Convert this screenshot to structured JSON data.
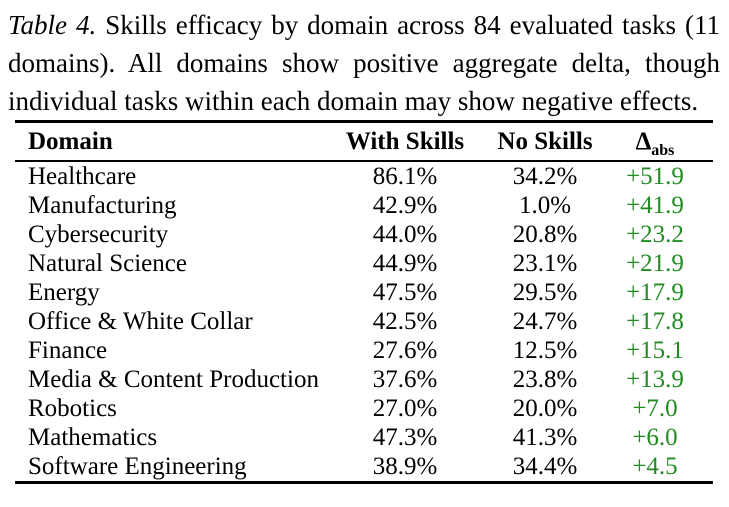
{
  "caption": {
    "label": "Table 4.",
    "text": "Skills efficacy by domain across 84 evaluated tasks (11 domains). All domains show positive aggregate delta, though individual tasks within each domain may show negative effects."
  },
  "table": {
    "headers": {
      "domain": "Domain",
      "with_skills": "With Skills",
      "no_skills": "No Skills",
      "delta_symbol": "Δ",
      "delta_subscript": "abs"
    },
    "rows": [
      {
        "domain": "Healthcare",
        "with_skills": "86.1%",
        "no_skills": "34.2%",
        "delta": "+51.9"
      },
      {
        "domain": "Manufacturing",
        "with_skills": "42.9%",
        "no_skills": "1.0%",
        "delta": "+41.9"
      },
      {
        "domain": "Cybersecurity",
        "with_skills": "44.0%",
        "no_skills": "20.8%",
        "delta": "+23.2"
      },
      {
        "domain": "Natural Science",
        "with_skills": "44.9%",
        "no_skills": "23.1%",
        "delta": "+21.9"
      },
      {
        "domain": "Energy",
        "with_skills": "47.5%",
        "no_skills": "29.5%",
        "delta": "+17.9"
      },
      {
        "domain": "Office & White Collar",
        "with_skills": "42.5%",
        "no_skills": "24.7%",
        "delta": "+17.8"
      },
      {
        "domain": "Finance",
        "with_skills": "27.6%",
        "no_skills": "12.5%",
        "delta": "+15.1"
      },
      {
        "domain": "Media & Content Production",
        "with_skills": "37.6%",
        "no_skills": "23.8%",
        "delta": "+13.9"
      },
      {
        "domain": "Robotics",
        "with_skills": "27.0%",
        "no_skills": "20.0%",
        "delta": "+7.0"
      },
      {
        "domain": "Mathematics",
        "with_skills": "47.3%",
        "no_skills": "41.3%",
        "delta": "+6.0"
      },
      {
        "domain": "Software Engineering",
        "with_skills": "38.9%",
        "no_skills": "34.4%",
        "delta": "+4.5"
      }
    ]
  },
  "colors": {
    "positive_delta": "#228b22",
    "text": "#000000",
    "background": "#ffffff",
    "rule": "#000000"
  }
}
